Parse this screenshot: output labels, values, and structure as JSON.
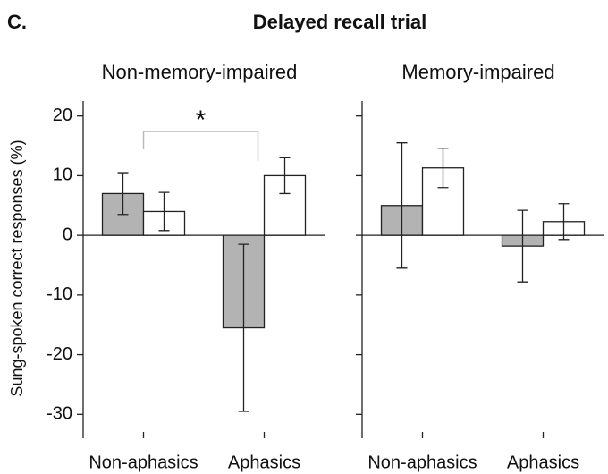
{
  "panel_label": "C.",
  "title": "Delayed recall trial",
  "y_label": "Sung-spoken correct responses (%)",
  "chart_data": [
    {
      "type": "bar",
      "title": "Non-memory-impaired",
      "categories": [
        "Non-aphasics",
        "Aphasics"
      ],
      "series": [
        {
          "color": "#b3b3b3",
          "values": [
            7,
            -15.5
          ],
          "errors": [
            3.5,
            14
          ]
        },
        {
          "color": "#ffffff",
          "values": [
            4,
            10
          ],
          "errors": [
            3.2,
            3
          ]
        }
      ],
      "annotation": "*",
      "ylim": [
        -34,
        22.5
      ],
      "yticks": [
        20,
        10,
        0,
        -10,
        -20,
        -30
      ]
    },
    {
      "type": "bar",
      "title": "Memory-impaired",
      "categories": [
        "Non-aphasics",
        "Aphasics"
      ],
      "series": [
        {
          "color": "#b3b3b3",
          "values": [
            5,
            -1.8
          ],
          "errors": [
            10.5,
            6
          ]
        },
        {
          "color": "#ffffff",
          "values": [
            11.3,
            2.3
          ],
          "errors": [
            3.3,
            3
          ]
        }
      ],
      "ylim": [
        -34,
        22.5
      ],
      "yticks": [
        20,
        10,
        0,
        -10,
        -20,
        -30
      ]
    }
  ]
}
